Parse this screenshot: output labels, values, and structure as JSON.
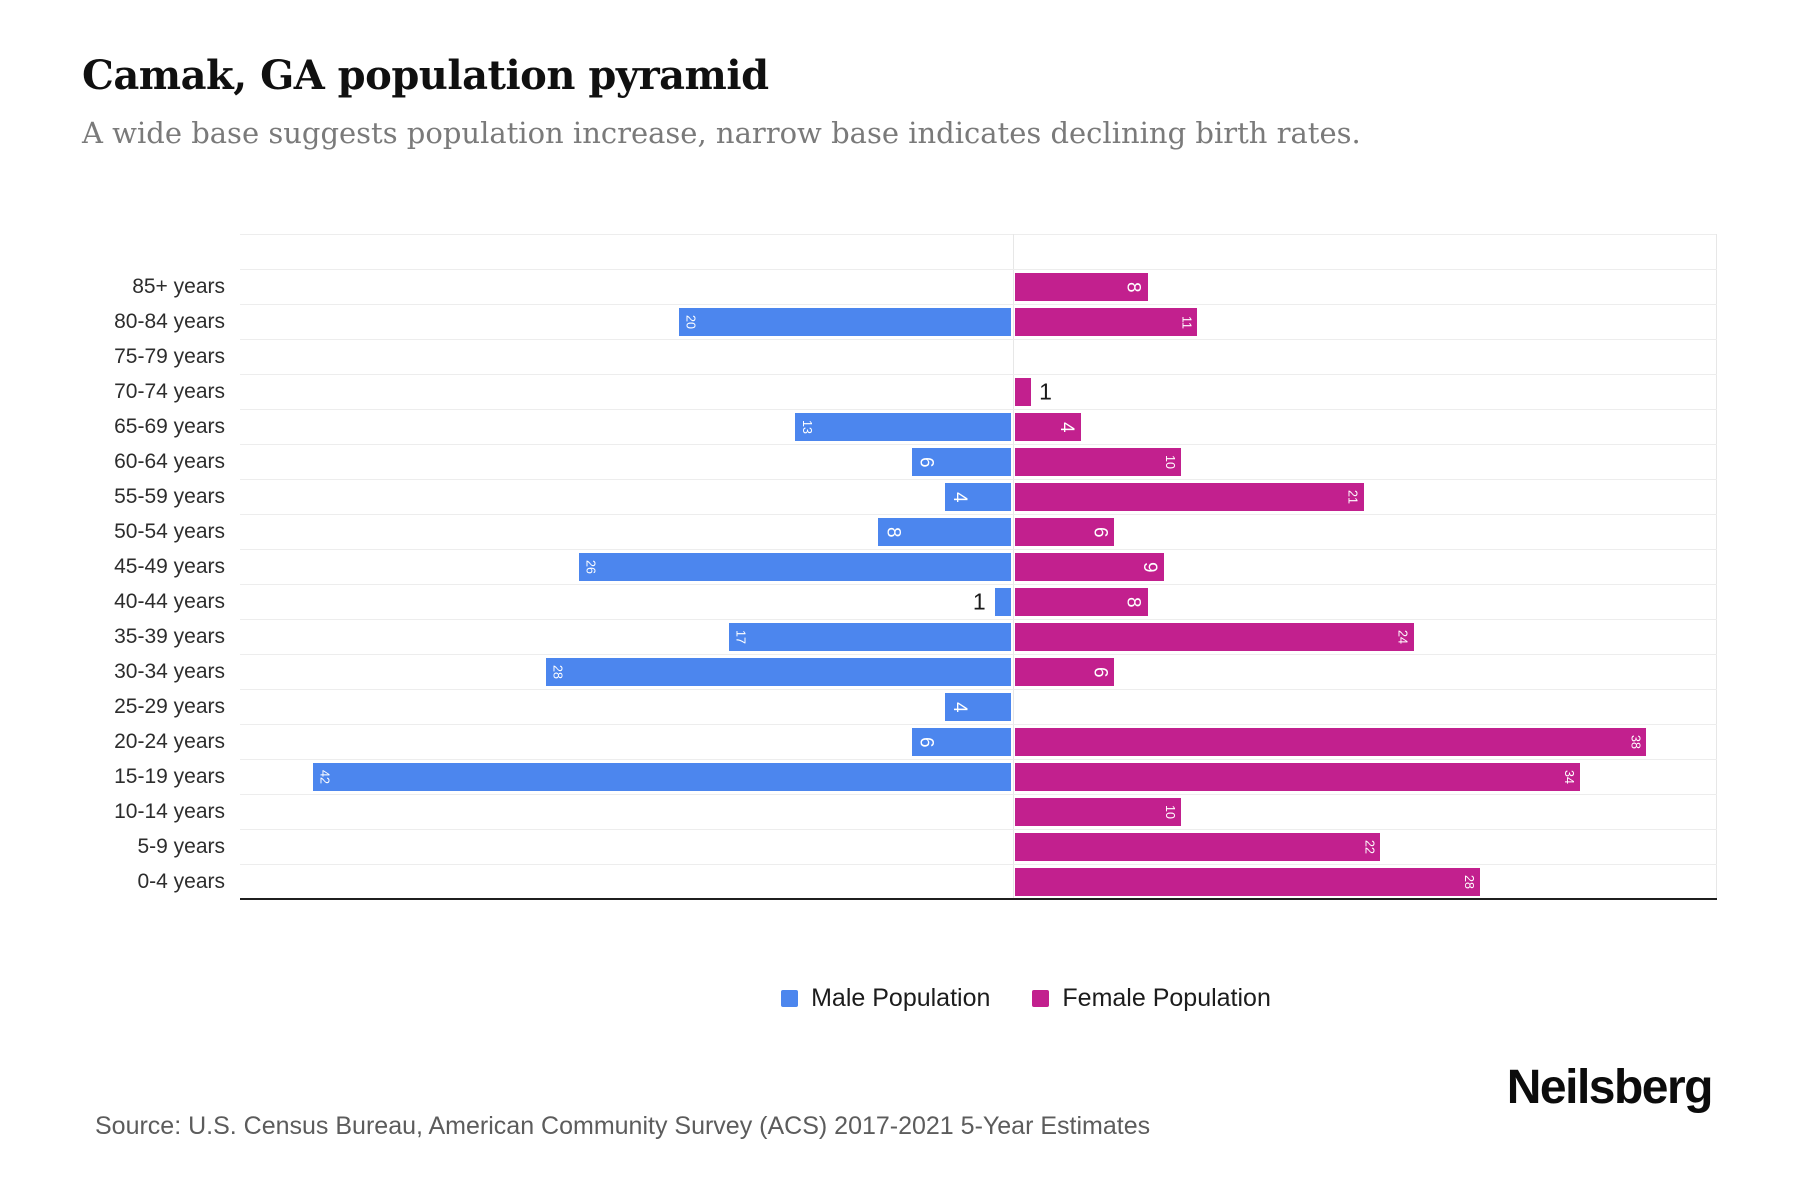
{
  "header": {
    "title": "Camak, GA population pyramid",
    "subtitle": "A wide base suggests population increase, narrow base indicates declining birth rates."
  },
  "chart_data": {
    "type": "bar",
    "variant": "population-pyramid",
    "title": "Camak, GA population pyramid",
    "categories": [
      "85+ years",
      "80-84 years",
      "75-79 years",
      "70-74 years",
      "65-69 years",
      "60-64 years",
      "55-59 years",
      "50-54 years",
      "45-49 years",
      "40-44 years",
      "35-39 years",
      "30-34 years",
      "25-29 years",
      "20-24 years",
      "15-19 years",
      "10-14 years",
      "5-9 years",
      "0-4 years"
    ],
    "series": [
      {
        "name": "Male Population",
        "color": "#4C86EE",
        "direction": "left",
        "values": [
          0,
          20,
          0,
          0,
          13,
          6,
          4,
          8,
          26,
          1,
          17,
          28,
          4,
          6,
          42,
          0,
          0,
          0
        ]
      },
      {
        "name": "Female Population",
        "color": "#C2208E",
        "direction": "right",
        "values": [
          8,
          11,
          0,
          1,
          4,
          10,
          21,
          6,
          9,
          8,
          24,
          6,
          0,
          38,
          34,
          10,
          22,
          28
        ]
      }
    ],
    "xlim": [
      -46,
      42
    ],
    "grid": true,
    "legend_position": "bottom",
    "value_label_color": "#ffffff",
    "outside_label_color": "#1a1a1a"
  },
  "legend": {
    "items": [
      {
        "label": "Male Population",
        "color": "#4C86EE"
      },
      {
        "label": "Female Population",
        "color": "#C2208E"
      }
    ]
  },
  "footer": {
    "source": "Source: U.S. Census Bureau, American Community Survey (ACS) 2017-2021 5-Year Estimates",
    "brand": "Neilsberg"
  }
}
